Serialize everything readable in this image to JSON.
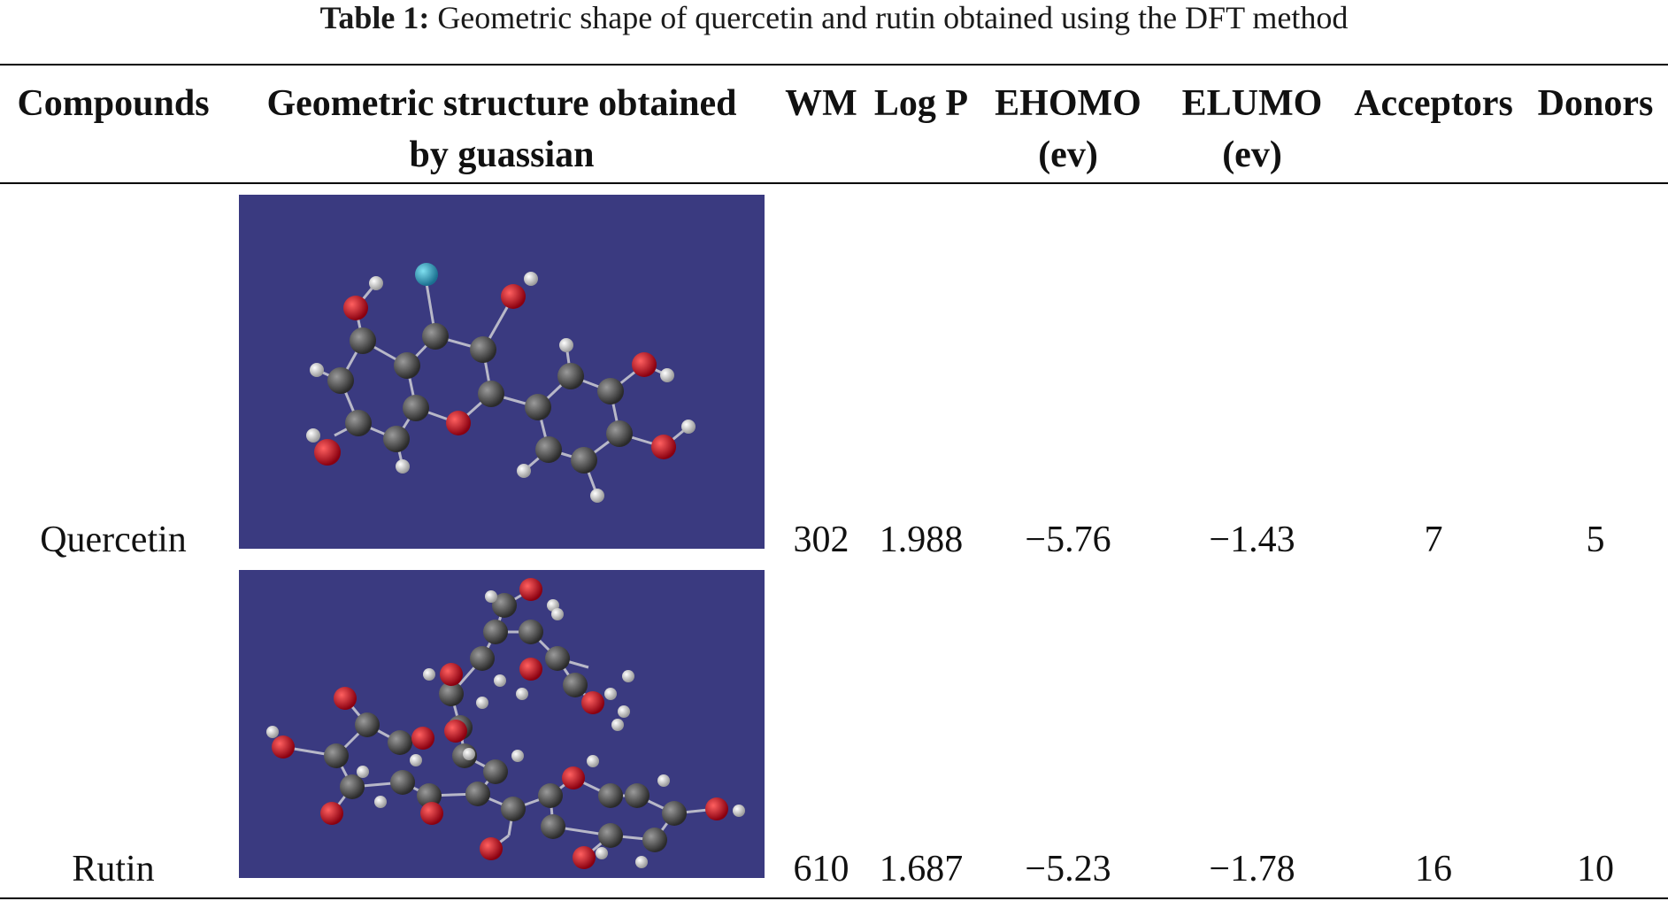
{
  "caption": {
    "label": "Table 1:",
    "text": "Geometric shape of quercetin and rutin obtained using the DFT method"
  },
  "headers": {
    "compounds": "Compounds",
    "structure_line1": "Geometric structure obtained",
    "structure_line2": "by guassian",
    "wm": "WM",
    "logp": "Log P",
    "ehomo_line1": "EHOMO",
    "ehomo_line2": "(ev)",
    "elumo_line1": "ELUMO",
    "elumo_line2": "(ev)",
    "acceptors": "Acceptors",
    "donors": "Donors"
  },
  "rows": [
    {
      "compound": "Quercetin",
      "wm": "302",
      "logp": "1.988",
      "ehomo": "−5.76",
      "elumo": "−1.43",
      "acceptors": "7",
      "donors": "5"
    },
    {
      "compound": "Rutin",
      "wm": "610",
      "logp": "1.687",
      "ehomo": "−5.23",
      "elumo": "−1.78",
      "acceptors": "16",
      "donors": "10"
    }
  ],
  "colors": {
    "molecule_background": "#3a3a80",
    "carbon": "#3a3a3a",
    "oxygen": "#c0101a",
    "hydrogen": "#e8e8e8",
    "highlight_atom": "#2aa0c0",
    "bond": "#b8b8c8"
  }
}
